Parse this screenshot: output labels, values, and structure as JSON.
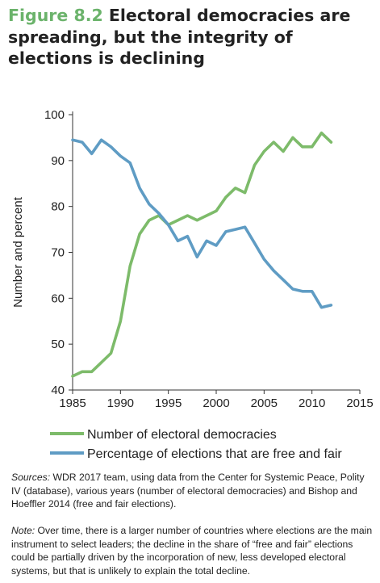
{
  "title": {
    "figure_label": "Figure 8.2",
    "text": "Electoral democracies are spreading, but the integrity of elections is declining"
  },
  "colors": {
    "series1": "#7dbb6a",
    "series2": "#5f9cc4",
    "figure_label": "#6bb36b"
  },
  "chart_data": {
    "type": "line",
    "title": "Electoral democracies are spreading, but the integrity of elections is declining",
    "xlabel": "",
    "ylabel": "Number and percent",
    "xlim": [
      1985,
      2015
    ],
    "ylim": [
      40,
      100
    ],
    "xticks": [
      1985,
      1990,
      1995,
      2000,
      2005,
      2010,
      2015
    ],
    "yticks": [
      40,
      50,
      60,
      70,
      80,
      90,
      100
    ],
    "grid": false,
    "legend_position": "bottom",
    "series": [
      {
        "name": "Number of electoral democracies",
        "color": "#7dbb6a",
        "x": [
          1985,
          1986,
          1987,
          1988,
          1989,
          1990,
          1991,
          1992,
          1993,
          1994,
          1995,
          1996,
          1997,
          1998,
          1999,
          2000,
          2001,
          2002,
          2003,
          2004,
          2005,
          2006,
          2007,
          2008,
          2009,
          2010,
          2011,
          2012
        ],
        "y": [
          43,
          44,
          44,
          46,
          48,
          55,
          67,
          74,
          77,
          78,
          76,
          77,
          78,
          77,
          78,
          79,
          82,
          84,
          83,
          89,
          92,
          94,
          92,
          95,
          93,
          93,
          96,
          94
        ]
      },
      {
        "name": "Percentage of elections that are free and fair",
        "color": "#5f9cc4",
        "x": [
          1985,
          1986,
          1987,
          1988,
          1989,
          1990,
          1991,
          1992,
          1993,
          1994,
          1995,
          1996,
          1997,
          1998,
          1999,
          2000,
          2001,
          2002,
          2003,
          2004,
          2005,
          2006,
          2007,
          2008,
          2009,
          2010,
          2011,
          2012
        ],
        "y": [
          94.5,
          94,
          91.5,
          94.5,
          93,
          91,
          89.5,
          84,
          80.5,
          78.5,
          76,
          72.5,
          73.5,
          69,
          72.5,
          71.5,
          74.5,
          75,
          75.5,
          72,
          68.5,
          66,
          64,
          62,
          61.5,
          61.5,
          58,
          58.5
        ]
      }
    ]
  },
  "sources": {
    "lead": "Sources:",
    "text": "WDR 2017 team, using data from the Center for Systemic Peace, Polity IV (database), various years (number of electoral democracies) and Bishop and Hoeffler 2014 (free and fair elections)."
  },
  "note": {
    "lead": "Note:",
    "text": "Over time, there is a larger number of countries where elections are the main instrument to select leaders; the decline in the share of “free and fair” elections could be partially driven by the incorporation of new, less developed electoral systems, but that is unlikely to explain the total decline."
  }
}
